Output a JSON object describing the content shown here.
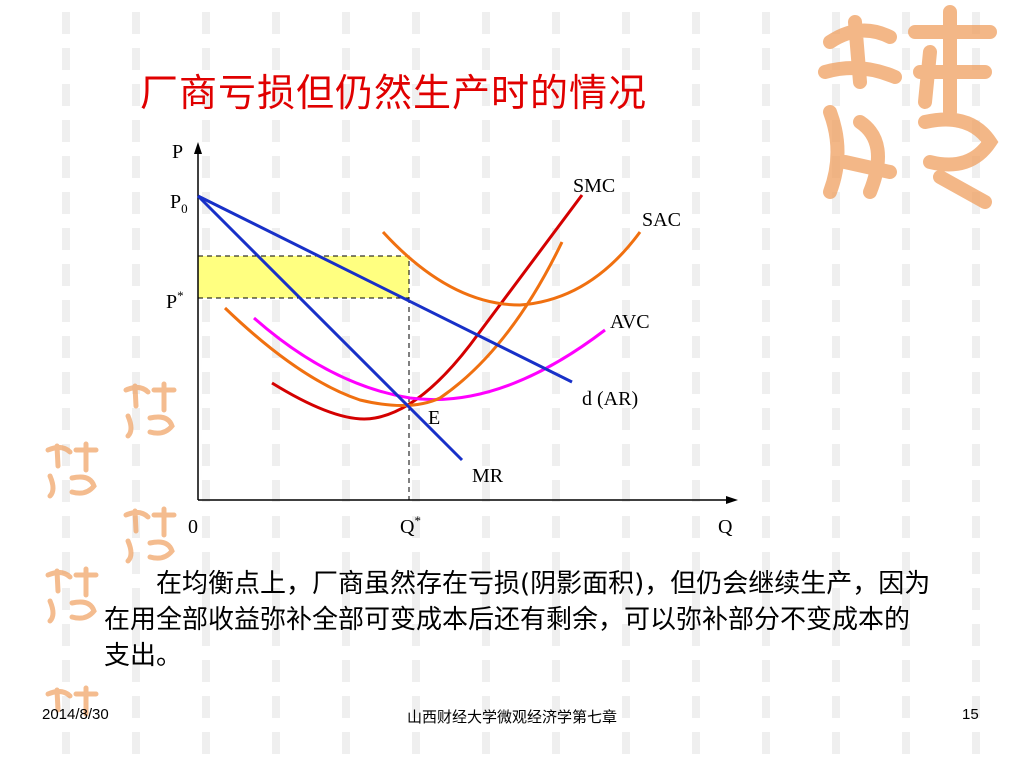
{
  "slide": {
    "title": "厂商亏损但仍然生产时的情况",
    "body": "在均衡点上，厂商虽然存在亏损(阴影面积)，但仍会继续生产，因为在用全部收益弥补全部可变成本后还有剩余，可以弥补部分不变成本的支出。"
  },
  "diagram": {
    "axis_y": "P",
    "axis_x": "Q",
    "origin": "0",
    "label_p0": "P",
    "label_p0_sub": "0",
    "label_pstar": "P",
    "label_pstar_sup": "*",
    "label_qstar": "Q",
    "label_qstar_sup": "*",
    "label_e": "E",
    "curves": {
      "smc": "SMC",
      "sac": "SAC",
      "avc": "AVC",
      "d": "d (AR)",
      "mr": "MR"
    },
    "colors": {
      "smc": "#d40000",
      "sac": "#f07010",
      "avc": "#ff00ff",
      "demand": "#1830c8",
      "shade": "#ffff80",
      "axis": "#000000"
    }
  },
  "footer": {
    "date": "2014/8/30",
    "center": "山西财经大学微观经济学第七章",
    "page": "15"
  },
  "decor": {
    "seal_color": "#f0a060"
  }
}
